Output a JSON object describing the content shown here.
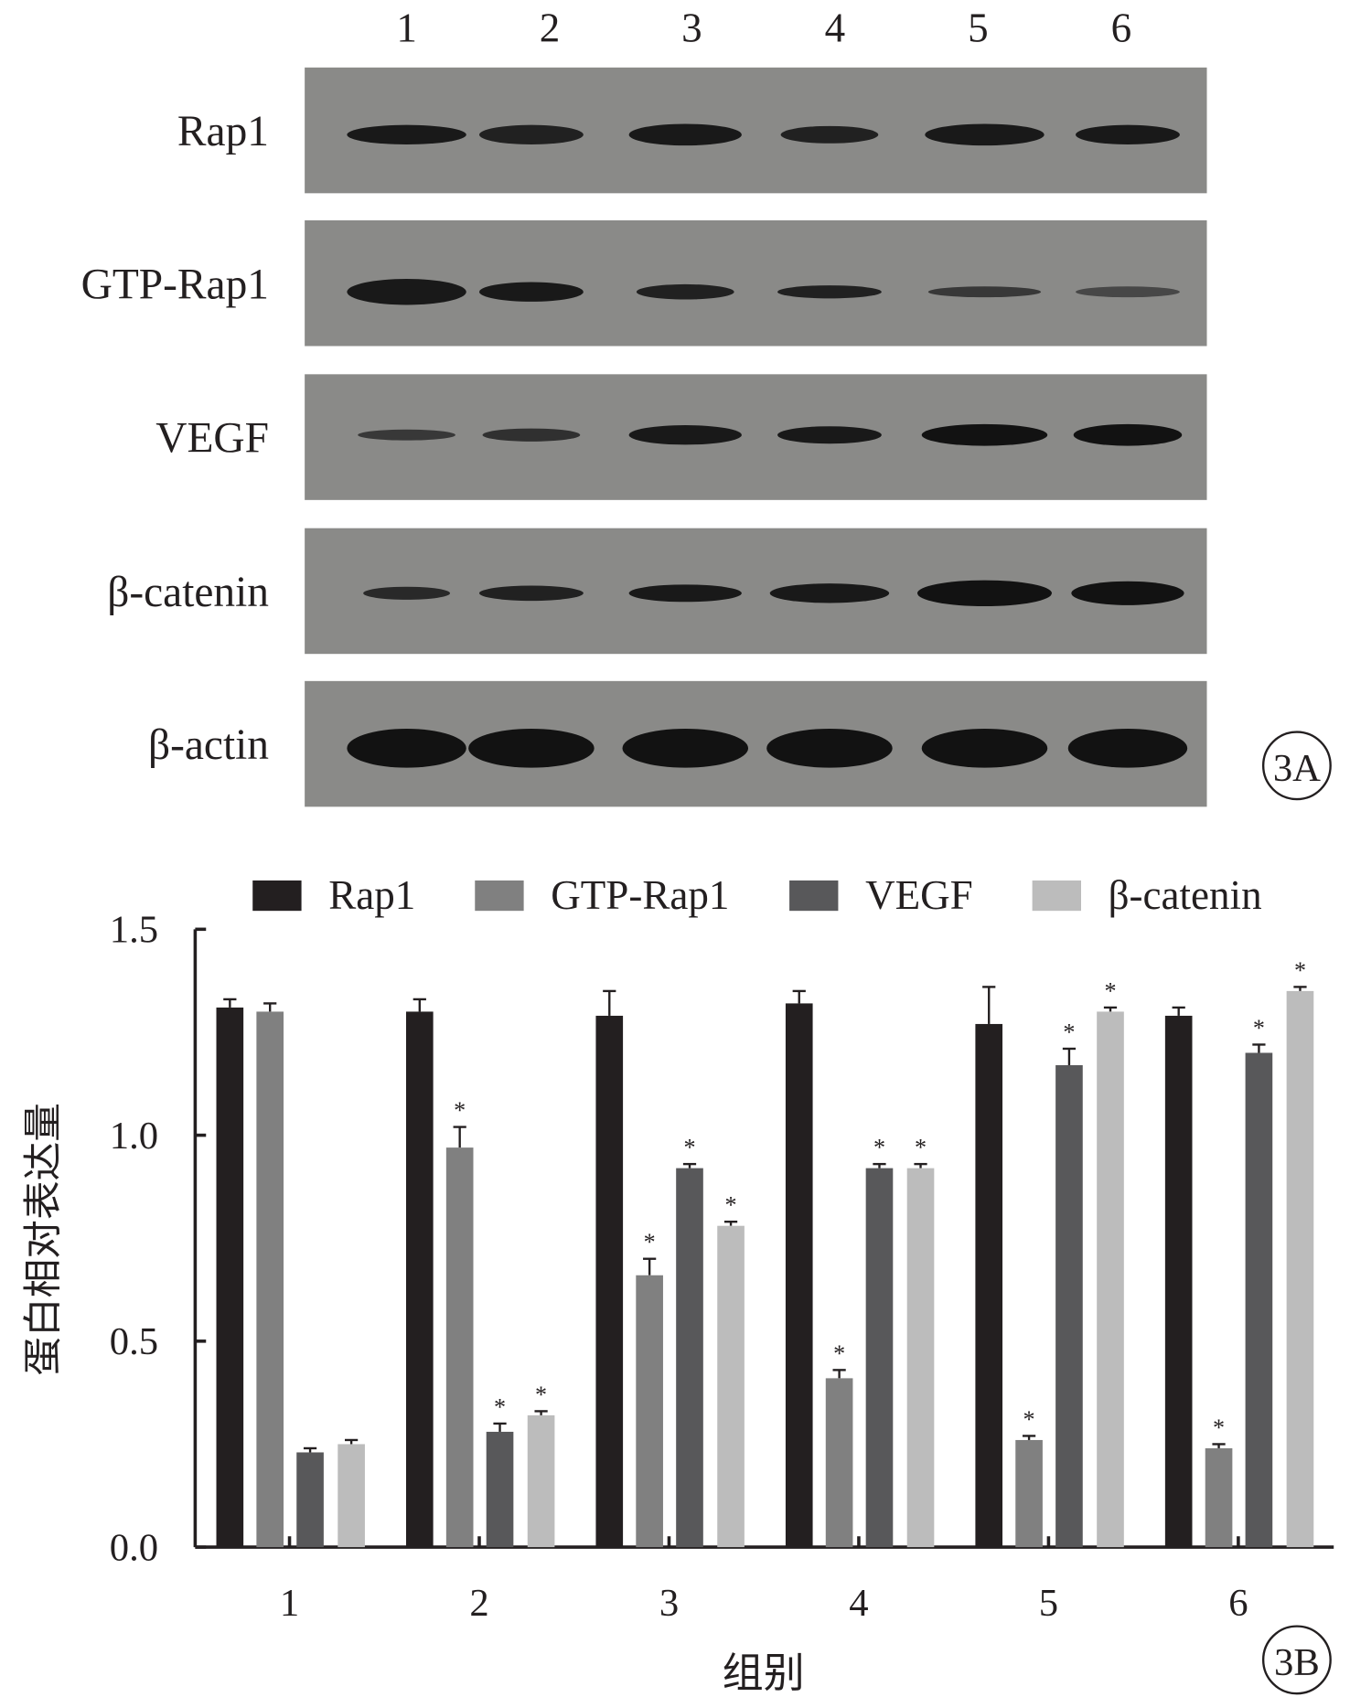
{
  "panel_a": {
    "label": "3A",
    "lane_labels": [
      "1",
      "2",
      "3",
      "4",
      "5",
      "6"
    ],
    "rows": [
      "Rap1",
      "GTP-Rap1",
      "VEGF",
      "β-catenin",
      "β-actin"
    ]
  },
  "chart_data": {
    "type": "bar",
    "panel_label": "3B",
    "title": "",
    "xlabel": "组别",
    "ylabel": "蛋白相对表达量",
    "ylim": [
      0,
      1.5
    ],
    "yticks": [
      "0.0",
      "0.5",
      "1.0",
      "1.5"
    ],
    "categories": [
      "1",
      "2",
      "3",
      "4",
      "5",
      "6"
    ],
    "legend_position": "top",
    "series": [
      {
        "name": "Rap1",
        "color": "#231f20",
        "values": [
          1.31,
          1.3,
          1.29,
          1.32,
          1.27,
          1.29
        ],
        "errors": [
          0.02,
          0.03,
          0.06,
          0.03,
          0.09,
          0.02
        ],
        "significant": [
          false,
          false,
          false,
          false,
          false,
          false
        ]
      },
      {
        "name": "GTP-Rap1",
        "color": "#808080",
        "values": [
          1.3,
          0.97,
          0.66,
          0.41,
          0.26,
          0.24
        ],
        "errors": [
          0.02,
          0.05,
          0.04,
          0.02,
          0.01,
          0.01
        ],
        "significant": [
          false,
          true,
          true,
          true,
          true,
          true
        ]
      },
      {
        "name": "VEGF",
        "color": "#58585a",
        "values": [
          0.23,
          0.28,
          0.92,
          0.92,
          1.17,
          1.2
        ],
        "errors": [
          0.01,
          0.02,
          0.01,
          0.01,
          0.04,
          0.02
        ],
        "significant": [
          false,
          true,
          true,
          true,
          true,
          true
        ]
      },
      {
        "name": "β-catenin",
        "color": "#bcbcbc",
        "values": [
          0.25,
          0.32,
          0.78,
          0.92,
          1.3,
          1.35
        ],
        "errors": [
          0.01,
          0.01,
          0.01,
          0.01,
          0.01,
          0.01
        ],
        "significant": [
          false,
          true,
          true,
          true,
          true,
          true
        ]
      }
    ],
    "significance_marker": "*"
  }
}
